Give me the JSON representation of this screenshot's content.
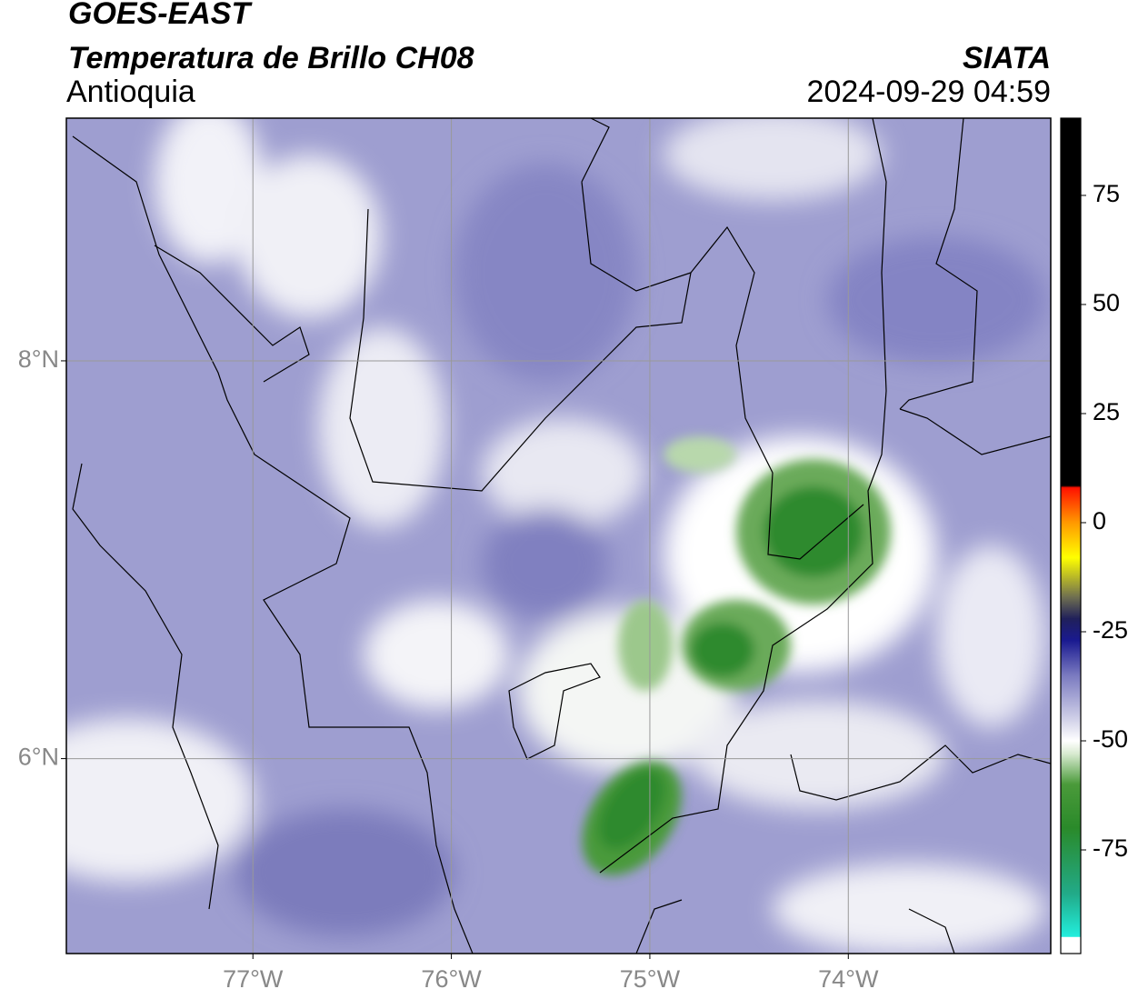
{
  "header": {
    "satellite": "GOES-EAST",
    "product": "Temperatura de Brillo CH08",
    "region": "Antioquia",
    "agency": "SIATA",
    "datetime": "2024-09-29 04:59"
  },
  "map": {
    "xlim": [
      -77.94,
      -72.98
    ],
    "ylim": [
      5.02,
      9.22
    ],
    "xticks": [
      {
        "value": -77,
        "label": "77°W"
      },
      {
        "value": -76,
        "label": "76°W"
      },
      {
        "value": -75,
        "label": "75°W"
      },
      {
        "value": -74,
        "label": "74°W"
      }
    ],
    "yticks": [
      {
        "value": 8,
        "label": "8°N"
      },
      {
        "value": 6,
        "label": "6°N"
      }
    ],
    "grid": true
  },
  "colorbar": {
    "lim": [
      -98.75,
      92.7
    ],
    "ticks": [
      75,
      50,
      25,
      0,
      -25,
      -50,
      -75
    ],
    "stops": [
      {
        "value": -98.75,
        "color": "#ffffff"
      },
      {
        "value": -95,
        "color": "#ffffff"
      },
      {
        "value": -94.9,
        "color": "#22eedd"
      },
      {
        "value": -85,
        "color": "#22aa88"
      },
      {
        "value": -70,
        "color": "#2a8a2a"
      },
      {
        "value": -60,
        "color": "#4a9a3a"
      },
      {
        "value": -53,
        "color": "#d8ead0"
      },
      {
        "value": -50,
        "color": "#ffffff"
      },
      {
        "value": -45,
        "color": "#d0d0e8"
      },
      {
        "value": -35,
        "color": "#7a7ac0"
      },
      {
        "value": -27,
        "color": "#1a1a90"
      },
      {
        "value": -22,
        "color": "#20205a"
      },
      {
        "value": -17,
        "color": "#707050"
      },
      {
        "value": -8,
        "color": "#ffff00"
      },
      {
        "value": 0,
        "color": "#ff9900"
      },
      {
        "value": 8,
        "color": "#ff1100"
      },
      {
        "value": 8.5,
        "color": "#000000"
      },
      {
        "value": 92.7,
        "color": "#000000"
      }
    ]
  }
}
